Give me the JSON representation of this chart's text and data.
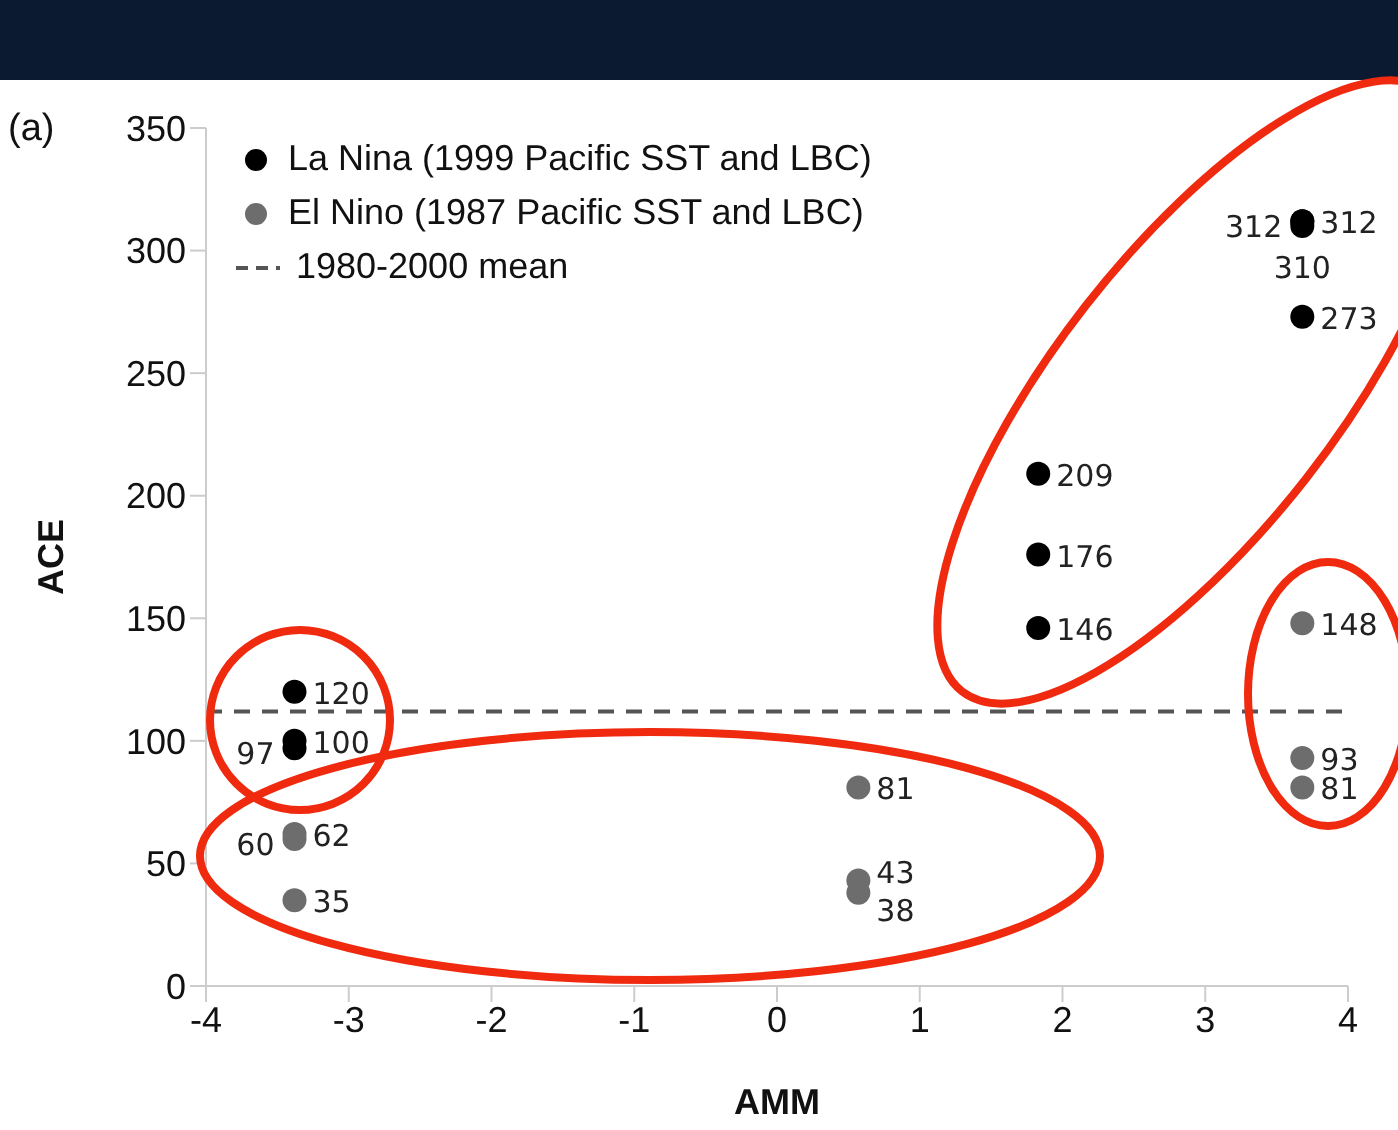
{
  "chart_data": {
    "type": "scatter",
    "xlabel": "AMM",
    "ylabel": "ACE",
    "annotations": [
      "(a)"
    ],
    "series": [
      {
        "name": "La Nina (1999 Pacific SST and LBC)",
        "color": "#000000",
        "x": [
          -3.38,
          -3.38,
          -3.38,
          1.83,
          1.83,
          1.83,
          3.68,
          3.68,
          3.68,
          3.68
        ],
        "values": [
          120,
          100,
          97,
          209,
          176,
          146,
          312,
          312,
          310,
          273
        ]
      },
      {
        "name": "El Nino (1987 Pacific SST and LBC)",
        "color": "#6d6d6d",
        "x": [
          -3.38,
          -3.38,
          -3.38,
          0.57,
          0.57,
          0.57,
          3.68,
          3.68,
          3.68
        ],
        "values": [
          62,
          60,
          35,
          81,
          43,
          38,
          148,
          93,
          81
        ]
      }
    ],
    "ref_lines": [
      {
        "axis": "y",
        "value": 112,
        "label": "1980-2000 mean",
        "color": "#555555",
        "line_style": "dashed"
      }
    ],
    "data_labels": true,
    "marker": "circle",
    "legend": "top left",
    "xlim": [
      -4,
      4
    ],
    "xticks": [
      -4,
      -3,
      -2,
      -1,
      0,
      1,
      2,
      3,
      4
    ],
    "ylim": [
      0,
      350
    ],
    "yticks": [
      0,
      50,
      100,
      150,
      200,
      250,
      300,
      350
    ]
  }
}
